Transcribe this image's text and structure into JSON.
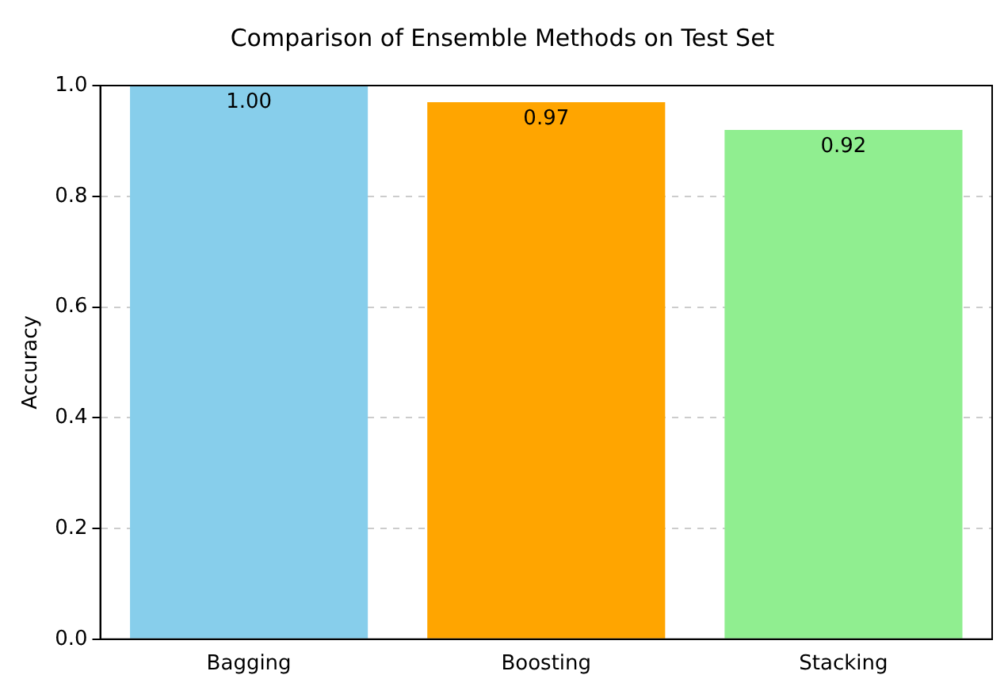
{
  "chart_data": {
    "type": "bar",
    "title": "Comparison of Ensemble Methods on Test Set",
    "ylabel": "Accuracy",
    "categories": [
      "Bagging",
      "Boosting",
      "Stacking"
    ],
    "values": [
      1.0,
      0.97,
      0.92
    ],
    "colors": [
      "#87ceeb",
      "#ffa500",
      "#90ee90"
    ],
    "value_labels": [
      "1.00",
      "0.97",
      "0.92"
    ],
    "ylim": [
      0,
      1
    ],
    "yticks": [
      {
        "value": 0,
        "label": "0.0"
      },
      {
        "value": 0.2,
        "label": "0.2"
      },
      {
        "value": 0.4,
        "label": "0.4"
      },
      {
        "value": 0.6,
        "label": "0.6"
      },
      {
        "value": 0.8,
        "label": "0.8"
      },
      {
        "value": 1,
        "label": "1.0"
      }
    ],
    "grid": "y",
    "legend": false
  }
}
